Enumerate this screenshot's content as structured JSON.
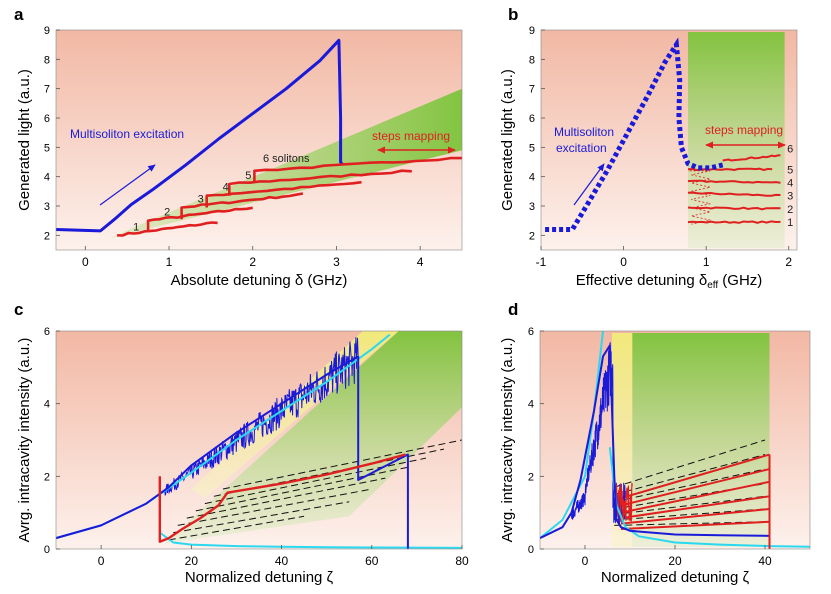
{
  "figure": {
    "panel_labels": [
      "a",
      "b",
      "c",
      "d"
    ]
  },
  "colors": {
    "frame_blue": "#1a1ad8",
    "steps_red": "#e02020",
    "theory_cyan": "#2ad8f0",
    "green_band": "#7cc43a",
    "yellow_band": "#f1ec7a",
    "bg_top": "#f2b8a4",
    "bg_bottom": "#fdf1ec"
  },
  "chart_data": [
    {
      "panel": "a",
      "type": "line",
      "xlabel": "Absolute detuning δ (GHz)",
      "ylabel": "Generated light (a.u.)",
      "xlim": [
        -0.35,
        4.5
      ],
      "ylim": [
        1.5,
        9.0
      ],
      "xticks": [
        "0",
        "1",
        "2",
        "3",
        "4"
      ],
      "yticks": [
        "2",
        "3",
        "4",
        "5",
        "6",
        "7",
        "8",
        "9"
      ],
      "annotations": {
        "multisoliton": "Multisoliton excitation",
        "steps_mapping": "steps mapping",
        "solitons_label": "6 solitons",
        "step_numbers": [
          "1",
          "2",
          "3",
          "4",
          "5"
        ]
      },
      "blue_trace": {
        "x": [
          -0.35,
          0.18,
          0.35,
          0.55,
          0.8,
          1.2,
          1.6,
          2.0,
          2.4,
          2.8,
          3.03,
          3.05,
          3.05,
          3.07
        ],
        "y": [
          2.2,
          2.15,
          2.55,
          3.05,
          3.55,
          4.4,
          5.3,
          6.15,
          7.0,
          7.95,
          8.65,
          6.0,
          4.5,
          4.42
        ]
      },
      "red_steps": [
        {
          "start": [
            0.38,
            2.0
          ],
          "end": [
            1.58,
            2.45
          ]
        },
        {
          "start": [
            0.75,
            2.5
          ],
          "end": [
            2.0,
            2.95
          ]
        },
        {
          "start": [
            1.15,
            2.95
          ],
          "end": [
            2.6,
            3.4
          ]
        },
        {
          "start": [
            1.45,
            3.35
          ],
          "end": [
            3.3,
            3.8
          ]
        },
        {
          "start": [
            1.72,
            3.75
          ],
          "end": [
            3.9,
            4.2
          ]
        },
        {
          "start": [
            2.02,
            4.2
          ],
          "end": [
            4.5,
            4.65
          ]
        }
      ]
    },
    {
      "panel": "b",
      "type": "line",
      "xlabel": "Effective detuning δ",
      "xlabel_sub": "eff",
      "xlabel_unit": " (GHz)",
      "ylabel": "Generated light (a.u.)",
      "xlim": [
        -1.0,
        2.1
      ],
      "ylim": [
        1.5,
        9.0
      ],
      "xticks": [
        "-1",
        "0",
        "1",
        "2"
      ],
      "yticks": [
        "2",
        "3",
        "4",
        "5",
        "6",
        "7",
        "8",
        "9"
      ],
      "annotations": {
        "multisoliton_line1": "Multisoliton",
        "multisoliton_line2": "excitation",
        "steps_mapping": "steps mapping",
        "step_numbers": [
          "1",
          "2",
          "3",
          "4",
          "5",
          "6"
        ]
      },
      "blue_dotted": {
        "x": [
          -0.95,
          -0.62,
          -0.45,
          -0.2,
          0.05,
          0.3,
          0.5,
          0.64,
          0.68,
          0.67,
          0.7,
          0.78,
          0.9,
          1.05,
          1.2
        ],
        "y": [
          2.2,
          2.2,
          3.0,
          4.2,
          5.5,
          6.8,
          7.9,
          8.5,
          7.3,
          6.0,
          5.0,
          4.45,
          4.3,
          4.3,
          4.4
        ]
      },
      "red_levels": [
        {
          "x": [
            0.78,
            1.9
          ],
          "y": [
            2.45,
            2.45
          ]
        },
        {
          "x": [
            0.78,
            1.9
          ],
          "y": [
            2.95,
            2.9
          ]
        },
        {
          "x": [
            0.78,
            1.9
          ],
          "y": [
            3.45,
            3.35
          ]
        },
        {
          "x": [
            0.78,
            1.9
          ],
          "y": [
            3.85,
            3.8
          ]
        },
        {
          "x": [
            0.78,
            1.8
          ],
          "y": [
            4.25,
            4.25
          ]
        },
        {
          "x": [
            1.2,
            1.9
          ],
          "y": [
            4.55,
            4.72
          ]
        }
      ]
    },
    {
      "panel": "c",
      "type": "line",
      "xlabel": "Normalized detuning ζ",
      "ylabel": "Avrg. intracavity intensity (a.u.)",
      "xlim": [
        -10,
        80
      ],
      "ylim": [
        0,
        6
      ],
      "xticks": [
        "0",
        "20",
        "40",
        "60",
        "80"
      ],
      "yticks": [
        "0",
        "2",
        "4",
        "6"
      ],
      "series": [
        {
          "name": "theory upper branch (cyan)",
          "x": [
            -10,
            0,
            10,
            20,
            30,
            40,
            50,
            60,
            64
          ],
          "y": [
            0.3,
            0.65,
            1.25,
            2.1,
            3.0,
            3.8,
            4.6,
            5.5,
            5.9
          ]
        },
        {
          "name": "theory lower branch (cyan)",
          "x": [
            13,
            16,
            20,
            30,
            40,
            50,
            60,
            80
          ],
          "y": [
            0.45,
            0.18,
            0.12,
            0.08,
            0.06,
            0.05,
            0.04,
            0.03
          ]
        },
        {
          "name": "simulated trace (blue)",
          "x": [
            -10,
            0,
            10,
            15,
            20,
            30,
            40,
            50,
            57,
            57,
            68,
            68
          ],
          "y": [
            0.3,
            0.65,
            1.25,
            1.7,
            2.3,
            3.2,
            4.0,
            4.8,
            5.3,
            1.9,
            2.6,
            0.0
          ]
        },
        {
          "name": "soliton steps (red)",
          "x": [
            13,
            13,
            15,
            18,
            22,
            26,
            28,
            40,
            50,
            60,
            67.5
          ],
          "y": [
            2.0,
            0.2,
            0.3,
            0.55,
            0.85,
            1.2,
            1.55,
            1.8,
            2.05,
            2.35,
            2.6
          ]
        }
      ],
      "dashed_levels": [
        {
          "x": [
            15,
            45
          ],
          "y": [
            0.25,
            0.9
          ]
        },
        {
          "x": [
            16,
            55
          ],
          "y": [
            0.45,
            1.3
          ]
        },
        {
          "x": [
            17,
            60
          ],
          "y": [
            0.65,
            1.65
          ]
        },
        {
          "x": [
            19,
            63
          ],
          "y": [
            0.85,
            1.95
          ]
        },
        {
          "x": [
            21,
            68
          ],
          "y": [
            1.05,
            2.25
          ]
        },
        {
          "x": [
            23,
            72
          ],
          "y": [
            1.25,
            2.5
          ]
        },
        {
          "x": [
            25,
            76
          ],
          "y": [
            1.45,
            2.75
          ]
        },
        {
          "x": [
            27,
            80
          ],
          "y": [
            1.65,
            3.0
          ]
        }
      ]
    },
    {
      "panel": "d",
      "type": "line",
      "xlabel": "Normalized detuning ζ",
      "ylabel": "Avrg. intracavity intensity (a.u.)",
      "xlim": [
        -10,
        50
      ],
      "ylim": [
        0,
        6
      ],
      "xticks": [
        "0",
        "20",
        "40"
      ],
      "yticks": [
        "0",
        "2",
        "4",
        "6"
      ],
      "series": [
        {
          "name": "theory upper branch (cyan)",
          "x": [
            -10,
            -5,
            0,
            2,
            4
          ],
          "y": [
            0.3,
            0.8,
            2.0,
            3.8,
            6.0
          ]
        },
        {
          "name": "theory lower branch (cyan)",
          "x": [
            5.5,
            7,
            9,
            12,
            20,
            30,
            41,
            50
          ],
          "y": [
            2.8,
            1.2,
            0.6,
            0.35,
            0.18,
            0.12,
            0.08,
            0.06
          ]
        },
        {
          "name": "simulated trace (blue)",
          "x": [
            -10,
            -5,
            -3,
            -1,
            2,
            4,
            5.5,
            6.5,
            7,
            8,
            10,
            20,
            30,
            41,
            41
          ],
          "y": [
            0.3,
            0.6,
            1.0,
            1.9,
            3.8,
            5.3,
            5.6,
            2.0,
            0.8,
            0.6,
            0.5,
            0.4,
            0.38,
            0.36,
            0.0
          ]
        }
      ],
      "red_levels": [
        {
          "x": [
            8,
            41
          ],
          "y": [
            1.4,
            2.6
          ]
        },
        {
          "x": [
            8,
            41
          ],
          "y": [
            1.2,
            2.2
          ]
        },
        {
          "x": [
            8,
            41
          ],
          "y": [
            1.0,
            1.85
          ]
        },
        {
          "x": [
            8,
            41
          ],
          "y": [
            0.85,
            1.45
          ]
        },
        {
          "x": [
            8,
            41
          ],
          "y": [
            0.7,
            1.1
          ]
        },
        {
          "x": [
            8,
            41
          ],
          "y": [
            0.55,
            0.75
          ]
        }
      ],
      "dashed_levels": [
        {
          "x": [
            6.5,
            40
          ],
          "y": [
            1.7,
            3.0
          ]
        },
        {
          "x": [
            6.5,
            40
          ],
          "y": [
            1.5,
            2.6
          ]
        },
        {
          "x": [
            6.5,
            40
          ],
          "y": [
            1.3,
            2.2
          ]
        },
        {
          "x": [
            6.5,
            40
          ],
          "y": [
            1.1,
            1.8
          ]
        },
        {
          "x": [
            6.5,
            40
          ],
          "y": [
            0.95,
            1.45
          ]
        },
        {
          "x": [
            6.5,
            40
          ],
          "y": [
            0.8,
            1.1
          ]
        },
        {
          "x": [
            6.5,
            40
          ],
          "y": [
            0.65,
            0.75
          ]
        }
      ]
    }
  ]
}
